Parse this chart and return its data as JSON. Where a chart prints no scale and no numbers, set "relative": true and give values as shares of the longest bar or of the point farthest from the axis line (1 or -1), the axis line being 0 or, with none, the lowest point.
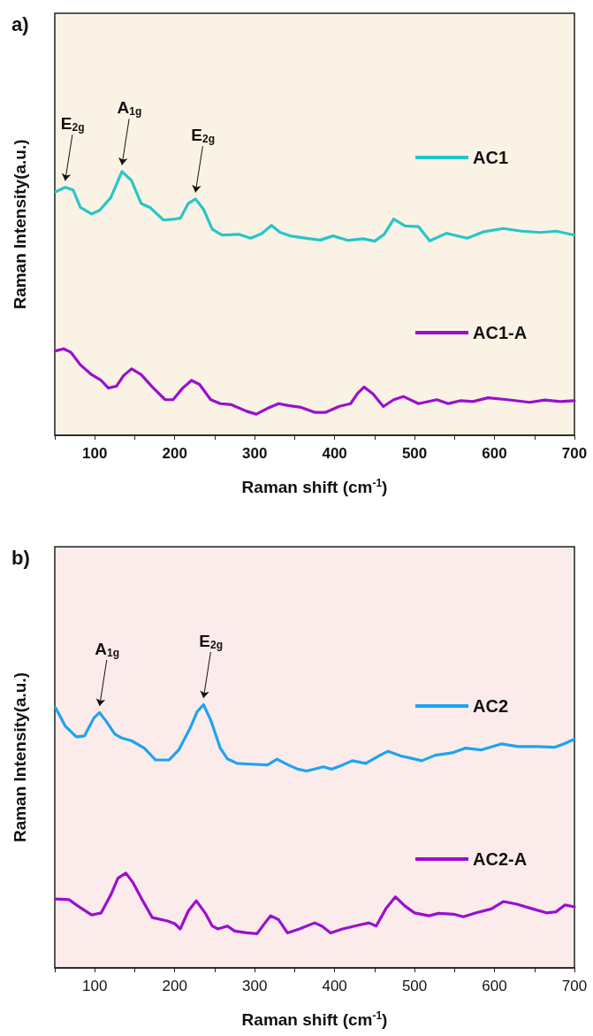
{
  "chart_data": [
    {
      "type": "line",
      "title": "a)",
      "xlabel": "Raman shift (cm$^{-1}$)",
      "ylabel": "Raman Intensity(a.u.)",
      "relative": true,
      "xlim": [
        50,
        700
      ],
      "xticks": [
        {
          "value": 50,
          "label": null
        },
        100,
        {
          "value": 150,
          "label": null
        },
        200,
        {
          "value": 250,
          "label": null
        },
        300,
        {
          "value": 350,
          "label": null
        },
        400,
        {
          "value": 450,
          "label": null
        },
        500,
        {
          "value": 550,
          "label": null
        },
        600,
        {
          "value": 650,
          "label": null
        },
        700
      ],
      "grid": false,
      "legend": "right",
      "marker": "none",
      "line_style": "solid",
      "annotations": [
        {
          "text": "E$_{2g}$",
          "x": 63,
          "y": 0.94
        },
        {
          "text": "A$_{1g}$",
          "x": 134,
          "y": 1.0
        },
        {
          "text": "E$_{2g}$",
          "x": 226,
          "y": 0.896
        }
      ],
      "series": [
        {
          "name": "AC1",
          "color": "#27c6c6",
          "x": [
            51,
            63,
            73,
            82,
            96,
            106,
            120,
            134,
            146,
            158,
            169,
            186,
            200,
            207,
            217,
            226,
            236,
            247,
            259,
            280,
            295,
            309,
            321,
            332,
            346,
            365,
            382,
            398,
            417,
            436,
            450,
            462,
            474,
            488,
            505,
            519,
            540,
            566,
            587,
            611,
            634,
            658,
            677,
            700
          ],
          "values": [
            0.923,
            0.94,
            0.93,
            0.864,
            0.839,
            0.853,
            0.901,
            1.0,
            0.966,
            0.879,
            0.864,
            0.816,
            0.82,
            0.823,
            0.879,
            0.896,
            0.857,
            0.781,
            0.759,
            0.762,
            0.747,
            0.765,
            0.796,
            0.769,
            0.755,
            0.747,
            0.74,
            0.756,
            0.739,
            0.745,
            0.736,
            0.762,
            0.82,
            0.794,
            0.791,
            0.737,
            0.766,
            0.747,
            0.772,
            0.784,
            0.774,
            0.769,
            0.774,
            0.759
          ]
        },
        {
          "name": "AC1-A",
          "color": "#9b0fce",
          "x": [
            51,
            61,
            70,
            82,
            96,
            108,
            117,
            127,
            136,
            146,
            158,
            172,
            188,
            198,
            210,
            221,
            231,
            245,
            257,
            271,
            290,
            302,
            316,
            330,
            342,
            358,
            375,
            389,
            406,
            420,
            429,
            437,
            448,
            461,
            474,
            486,
            505,
            528,
            542,
            557,
            573,
            592,
            616,
            644,
            663,
            682,
            700
          ],
          "values": [
            0.32,
            0.328,
            0.315,
            0.267,
            0.23,
            0.208,
            0.179,
            0.186,
            0.226,
            0.252,
            0.23,
            0.183,
            0.135,
            0.135,
            0.179,
            0.208,
            0.193,
            0.135,
            0.12,
            0.116,
            0.091,
            0.08,
            0.102,
            0.12,
            0.113,
            0.106,
            0.087,
            0.087,
            0.11,
            0.12,
            0.16,
            0.183,
            0.157,
            0.109,
            0.135,
            0.147,
            0.12,
            0.135,
            0.12,
            0.131,
            0.128,
            0.142,
            0.135,
            0.125,
            0.134,
            0.128,
            0.131
          ]
        }
      ]
    },
    {
      "type": "line",
      "title": "b)",
      "xlabel": "Raman shift (cm$^{-1}$)",
      "ylabel": "Raman Intensity(a.u.)",
      "relative": true,
      "xlim": [
        50,
        700
      ],
      "xticks": [
        {
          "value": 50,
          "label": null
        },
        100,
        {
          "value": 150,
          "label": null
        },
        200,
        {
          "value": 250,
          "label": null
        },
        300,
        {
          "value": 350,
          "label": null
        },
        400,
        {
          "value": 450,
          "label": null
        },
        500,
        {
          "value": 550,
          "label": null
        },
        600,
        {
          "value": 650,
          "label": null
        },
        700
      ],
      "grid": false,
      "legend": "right",
      "marker": "none",
      "line_style": "solid",
      "annotations": [
        {
          "text": "A$_{1g}$",
          "x": 106,
          "y": 0.97
        },
        {
          "text": "E$_{2g}$",
          "x": 236,
          "y": 1.0
        }
      ],
      "series": [
        {
          "name": "AC2",
          "color": "#1ea3f0",
          "x": [
            51,
            63,
            77,
            87,
            99,
            106,
            115,
            125,
            134,
            146,
            162,
            176,
            193,
            205,
            219,
            228,
            236,
            245,
            257,
            266,
            278,
            295,
            316,
            328,
            342,
            354,
            365,
            386,
            396,
            410,
            422,
            439,
            455,
            467,
            483,
            495,
            509,
            526,
            547,
            564,
            583,
            609,
            630,
            654,
            675,
            687,
            700
          ],
          "values": [
            0.988,
            0.919,
            0.878,
            0.881,
            0.95,
            0.97,
            0.934,
            0.889,
            0.873,
            0.863,
            0.835,
            0.79,
            0.79,
            0.828,
            0.909,
            0.973,
            1.0,
            0.942,
            0.835,
            0.794,
            0.777,
            0.774,
            0.771,
            0.793,
            0.771,
            0.755,
            0.748,
            0.764,
            0.755,
            0.771,
            0.787,
            0.777,
            0.805,
            0.823,
            0.805,
            0.797,
            0.787,
            0.808,
            0.817,
            0.835,
            0.828,
            0.851,
            0.841,
            0.841,
            0.838,
            0.851,
            0.869
          ]
        },
        {
          "name": "AC2-A",
          "color": "#9b0fce",
          "x": [
            51,
            68,
            79,
            96,
            108,
            120,
            129,
            139,
            148,
            160,
            172,
            191,
            200,
            207,
            217,
            227,
            238,
            247,
            254,
            266,
            275,
            290,
            303,
            313,
            320,
            330,
            341,
            356,
            375,
            384,
            395,
            410,
            431,
            443,
            452,
            464,
            476,
            488,
            500,
            518,
            530,
            549,
            561,
            577,
            596,
            611,
            627,
            648,
            665,
            677,
            688,
            700
          ],
          "values": [
            0.262,
            0.259,
            0.235,
            0.201,
            0.209,
            0.277,
            0.341,
            0.36,
            0.323,
            0.255,
            0.191,
            0.178,
            0.168,
            0.148,
            0.216,
            0.255,
            0.209,
            0.159,
            0.148,
            0.159,
            0.14,
            0.133,
            0.13,
            0.171,
            0.198,
            0.183,
            0.133,
            0.148,
            0.171,
            0.159,
            0.133,
            0.148,
            0.163,
            0.171,
            0.159,
            0.224,
            0.27,
            0.235,
            0.209,
            0.198,
            0.207,
            0.204,
            0.194,
            0.209,
            0.224,
            0.252,
            0.243,
            0.224,
            0.209,
            0.213,
            0.239,
            0.232
          ]
        }
      ]
    }
  ]
}
